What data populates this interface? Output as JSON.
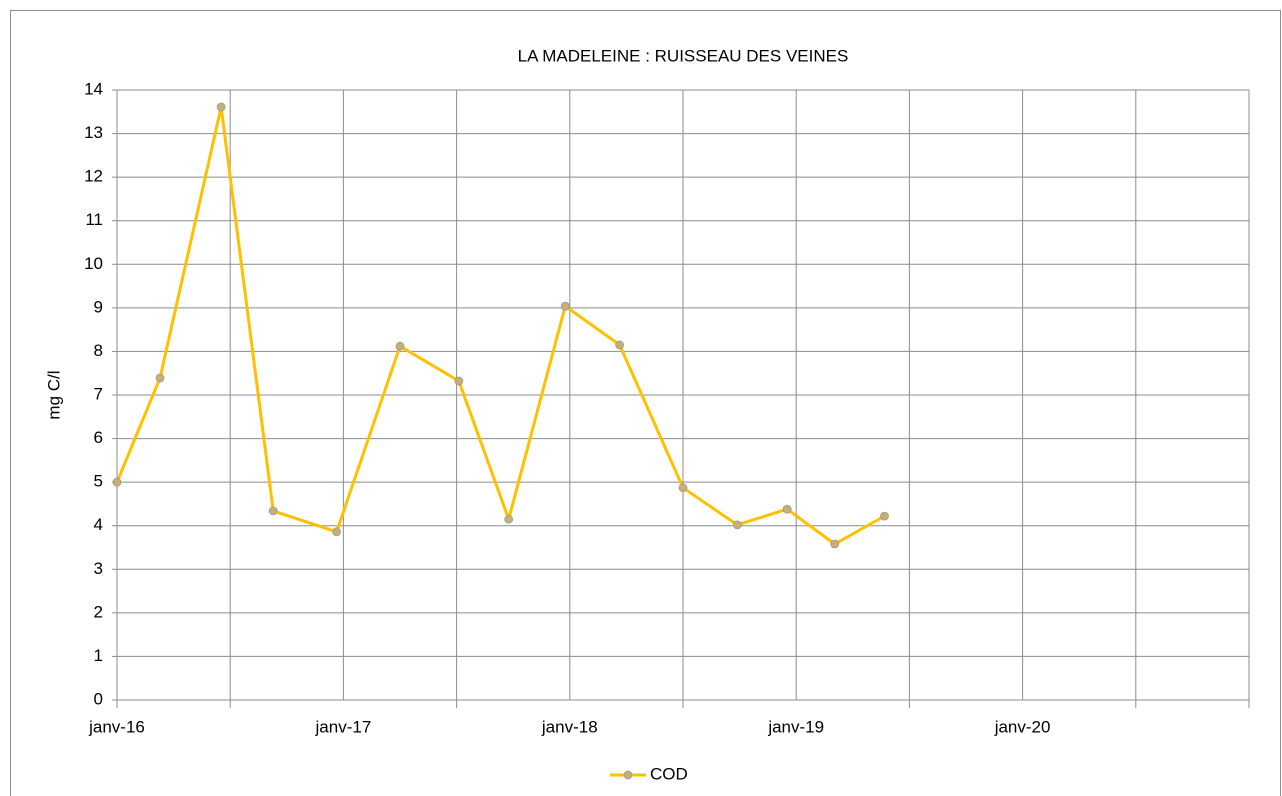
{
  "chart_data": {
    "type": "line",
    "title": "LA MADELEINE : RUISSEAU DES VEINES",
    "ylabel": "mg C/l",
    "x": [
      2016.0,
      2016.19,
      2016.46,
      2016.69,
      2016.97,
      2017.25,
      2017.51,
      2017.73,
      2017.98,
      2018.22,
      2018.5,
      2018.74,
      2018.96,
      2019.17,
      2019.39
    ],
    "series": [
      {
        "name": "COD",
        "color": "#ffc000",
        "marker_color": "#c8b070",
        "values": [
          5.0,
          7.39,
          13.61,
          4.34,
          3.86,
          8.12,
          7.32,
          4.15,
          9.04,
          8.15,
          4.87,
          4.02,
          4.38,
          3.58,
          4.22
        ]
      }
    ],
    "xlim": [
      2016,
      2021
    ],
    "xticks": [
      {
        "value": 2016,
        "label": "janv-16"
      },
      {
        "value": 2017,
        "label": "janv-17"
      },
      {
        "value": 2018,
        "label": "janv-18"
      },
      {
        "value": 2019,
        "label": "janv-19"
      },
      {
        "value": 2020,
        "label": "janv-20"
      }
    ],
    "xminorticks": [
      2016.5,
      2017.5,
      2018.5,
      2019.5,
      2020.5,
      2021
    ],
    "ylim": [
      0,
      14
    ],
    "yticks": [
      0,
      1,
      2,
      3,
      4,
      5,
      6,
      7,
      8,
      9,
      10,
      11,
      12,
      13,
      14
    ],
    "grid": true,
    "legend": "bottom"
  }
}
